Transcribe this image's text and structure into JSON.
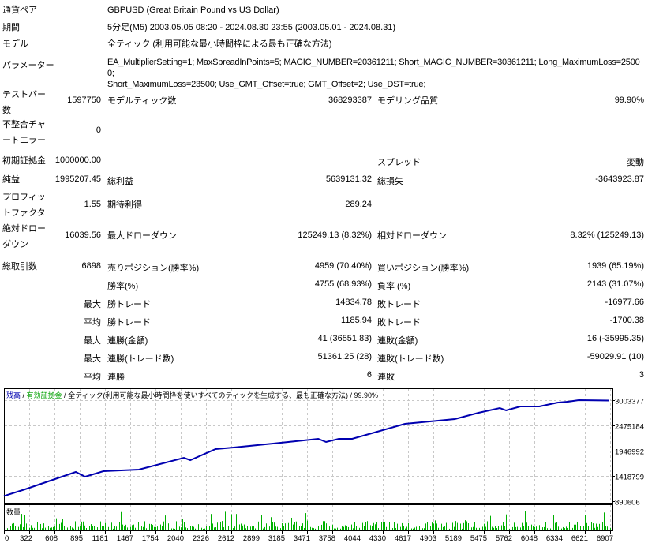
{
  "header": {
    "symbol_label": "通貨ペア",
    "symbol_value": "GBPUSD (Great Britain Pound vs US Dollar)",
    "period_label": "期間",
    "period_value": "5分足(M5) 2003.05.05 08:20 - 2024.08.30 23:55 (2003.05.01 - 2024.08.31)",
    "model_label": "モデル",
    "model_value": "全ティック (利用可能な最小時間枠による最も正確な方法)",
    "params_label": "パラメーター",
    "params_line1": "EA_MultiplierSetting=1; MaxSpreadInPoints=5; MAGIC_NUMBER=20361211; Short_MAGIC_NUMBER=30361211; Long_MaximumLoss=25000;",
    "params_line2": "Short_MaximumLoss=23500; Use_GMT_Offset=true; GMT_Offset=2; Use_DST=true;"
  },
  "stats": {
    "bars_label": "テストバー数",
    "bars_value": "1597750",
    "ticks_label": "モデルティック数",
    "ticks_value": "368293387",
    "quality_label": "モデリング品質",
    "quality_value": "99.90%",
    "mismatch_label": "不整合チャートエラー",
    "mismatch_value": "0",
    "deposit_label": "初期証拠金",
    "deposit_value": "1000000.00",
    "spread_label": "スプレッド",
    "spread_value": "変動",
    "net_label": "純益",
    "net_value": "1995207.45",
    "gross_profit_label": "総利益",
    "gross_profit_value": "5639131.32",
    "gross_loss_label": "総損失",
    "gross_loss_value": "-3643923.87",
    "pf_label": "プロフィットファクタ",
    "pf_value": "1.55",
    "payoff_label": "期待利得",
    "payoff_value": "289.24",
    "abs_dd_label": "絶対ドローダウン",
    "abs_dd_value": "16039.56",
    "max_dd_label": "最大ドローダウン",
    "max_dd_value": "125249.13 (8.32%)",
    "rel_dd_label": "相対ドローダウン",
    "rel_dd_value": "8.32% (125249.13)",
    "trades_label": "総取引数",
    "trades_value": "6898",
    "short_label": "売りポジション(勝率%)",
    "short_value": "4959 (70.40%)",
    "long_label": "買いポジション(勝率%)",
    "long_value": "1939 (65.19%)",
    "win_label": "勝率(%)",
    "win_value": "4755 (68.93%)",
    "loss_label": "負率 (%)",
    "loss_value": "2143 (31.07%)",
    "largest_prefix": "最大",
    "largest_win_label": "勝トレード",
    "largest_win_value": "14834.78",
    "largest_loss_label": "敗トレード",
    "largest_loss_value": "-16977.66",
    "average_prefix": "平均",
    "avg_win_label": "勝トレード",
    "avg_win_value": "1185.94",
    "avg_loss_label": "敗トレード",
    "avg_loss_value": "-1700.38",
    "max_prefix1": "最大",
    "cons_wins_money_label": "連勝(金額)",
    "cons_wins_money_value": "41 (36551.83)",
    "cons_losses_money_label": "連敗(金額)",
    "cons_losses_money_value": "16 (-35995.35)",
    "max_prefix2": "最大",
    "cons_profit_label": "連勝(トレード数)",
    "cons_profit_value": "51361.25 (28)",
    "cons_loss_label": "連敗(トレード数)",
    "cons_loss_value": "-59029.91 (10)",
    "avg_prefix2": "平均",
    "avg_cons_wins_label": "連勝",
    "avg_cons_wins_value": "6",
    "avg_cons_losses_label": "連敗",
    "avg_cons_losses_value": "3"
  },
  "chart_data": {
    "type": "line",
    "legend": {
      "balance": "残高",
      "sep1": " / ",
      "equity": "有効証拠金",
      "sep2": " / ",
      "model": "全ティック(利用可能な最小時間枠を使いすべてのティックを生成する、最も正確な方法)",
      "sep3": " / ",
      "quality": "99.90%"
    },
    "colors": {
      "balance": "#0000b0",
      "equity": "#00a000",
      "volume": "#00b000"
    },
    "volume_label": "数量",
    "x_ticks": [
      0,
      322,
      608,
      895,
      1181,
      1467,
      1754,
      2040,
      2326,
      2612,
      2899,
      3185,
      3471,
      3758,
      4044,
      4330,
      4617,
      4903,
      5189,
      5475,
      5762,
      6048,
      6334,
      6621,
      6907
    ],
    "y_ticks": [
      3003377,
      2475184,
      1946992,
      1418799,
      890606
    ],
    "grid": true,
    "series": [
      {
        "x": [
          0,
          268,
          850,
          957,
          1163,
          1566,
          2076,
          2148,
          2434,
          2640,
          3088,
          3598,
          3687,
          3831,
          3983,
          4582,
          5146,
          5415,
          5656,
          5728,
          5889,
          6104,
          6310,
          6426,
          6551,
          6898
        ],
        "y": [
          1000000,
          1138000,
          1501000,
          1402000,
          1518000,
          1551000,
          1798000,
          1749000,
          1980000,
          2013000,
          2096000,
          2195000,
          2128000,
          2195000,
          2195000,
          2508000,
          2607000,
          2739000,
          2838000,
          2789000,
          2871000,
          2871000,
          2953000,
          2970000,
          3003377,
          2995207
        ]
      }
    ]
  }
}
